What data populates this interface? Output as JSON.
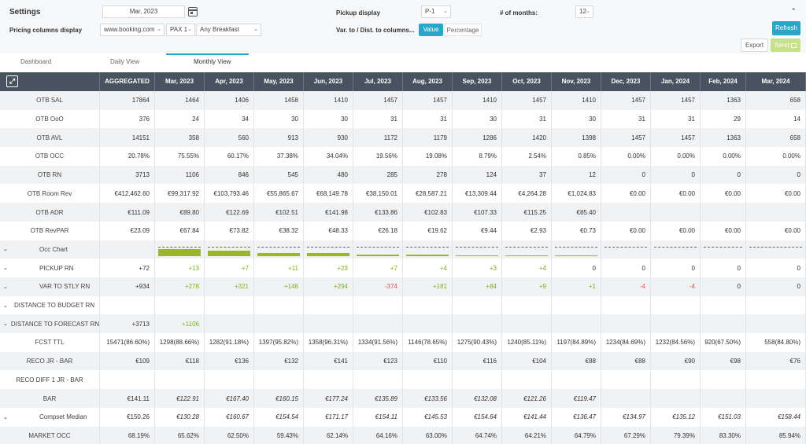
{
  "settings": {
    "title": "Settings",
    "date_value": "Mar, 2023",
    "pricing_label": "Pricing columns display",
    "pricing_source": "www.booking.com",
    "pricing_pax": "PAX 1",
    "pricing_board": "Any Breakfast",
    "pickup_label": "Pickup display",
    "pickup_value": "P-1",
    "months_label": "# of months:",
    "months_value": "12",
    "var_label": "Var. to / Dist. to columns...",
    "value_btn": "Value",
    "percentage_btn": "Percentage",
    "refresh_btn": "Refresh",
    "export_btn": "Export",
    "send_btn": "Send"
  },
  "tabs": [
    "Dashboard",
    "Daily View",
    "Monthly View"
  ],
  "columns": [
    "AGGREGATED",
    "Mar, 2023",
    "Apr, 2023",
    "May, 2023",
    "Jun, 2023",
    "Jul, 2023",
    "Aug, 2023",
    "Sep, 2023",
    "Oct, 2023",
    "Nov, 2023",
    "Dec, 2023",
    "Jan, 2024",
    "Feb, 2024",
    "Mar, 2024"
  ],
  "occ_chart": [
    0.7555,
    0.6017,
    0.3738,
    0.3404,
    0.1956,
    0.1908,
    0.0879,
    0.0254,
    0.0085,
    0,
    0,
    0,
    0
  ],
  "rows": [
    {
      "label": "OTB SAL",
      "values": [
        "17864",
        "1464",
        "1406",
        "1458",
        "1410",
        "1457",
        "1457",
        "1410",
        "1457",
        "1410",
        "1457",
        "1457",
        "1363",
        "658"
      ]
    },
    {
      "label": "OTB OoO",
      "values": [
        "376",
        "24",
        "34",
        "30",
        "30",
        "31",
        "31",
        "30",
        "31",
        "30",
        "31",
        "31",
        "29",
        "14"
      ]
    },
    {
      "label": "OTB AVL",
      "values": [
        "14151",
        "358",
        "560",
        "913",
        "930",
        "1172",
        "1179",
        "1286",
        "1420",
        "1398",
        "1457",
        "1457",
        "1363",
        "658"
      ]
    },
    {
      "label": "OTB OCC",
      "values": [
        "20.78%",
        "75.55%",
        "60.17%",
        "37.38%",
        "34.04%",
        "19.56%",
        "19.08%",
        "8.79%",
        "2.54%",
        "0.85%",
        "0.00%",
        "0.00%",
        "0.00%",
        "0.00%"
      ]
    },
    {
      "label": "OTB RN",
      "values": [
        "3713",
        "1106",
        "846",
        "545",
        "480",
        "285",
        "278",
        "124",
        "37",
        "12",
        "0",
        "0",
        "0",
        "0"
      ]
    },
    {
      "label": "OTB Room Rev",
      "values": [
        "€412,462.60",
        "€99,317.92",
        "€103,793.46",
        "€55,865.67",
        "€68,149.78",
        "€38,150.01",
        "€28,587.21",
        "€13,309.44",
        "€4,264.28",
        "€1,024.83",
        "€0.00",
        "€0.00",
        "€0.00",
        "€0.00"
      ]
    },
    {
      "label": "OTB ADR",
      "values": [
        "€111.09",
        "€89.80",
        "€122.69",
        "€102.51",
        "€141.98",
        "€133.86",
        "€102.83",
        "€107.33",
        "€115.25",
        "€85.40",
        "",
        "",
        "",
        ""
      ]
    },
    {
      "label": "OTB RevPAR",
      "values": [
        "€23.09",
        "€67.84",
        "€73.82",
        "€38.32",
        "€48.33",
        "€26.18",
        "€19.62",
        "€9.44",
        "€2.93",
        "€0.73",
        "€0.00",
        "€0.00",
        "€0.00",
        "€0.00"
      ]
    },
    {
      "label": "Occ Chart",
      "chev": true,
      "chart": true,
      "values": []
    },
    {
      "label": "PICKUP RN",
      "chev": true,
      "values": [
        "+72",
        "+13",
        "+7",
        "+11",
        "+23",
        "+7",
        "+4",
        "+3",
        "+4",
        "0",
        "0",
        "0",
        "0",
        "0"
      ]
    },
    {
      "label": "VAR TO STLY RN",
      "chev": true,
      "values": [
        "+934",
        "+278",
        "+321",
        "+148",
        "+294",
        "-374",
        "+181",
        "+84",
        "+9",
        "+1",
        "-4",
        "-4",
        "0",
        "0"
      ]
    },
    {
      "label": "DISTANCE TO BUDGET RN",
      "chev": true,
      "left": true,
      "values": [
        "",
        "",
        "",
        "",
        "",
        "",
        "",
        "",
        "",
        "",
        "",
        "",
        "",
        ""
      ]
    },
    {
      "label": "DISTANCE TO FORECAST RN",
      "chev": true,
      "left": true,
      "values": [
        "+3713",
        "+1106",
        "",
        "",
        "",
        "",
        "",
        "",
        "",
        "",
        "",
        "",
        "",
        ""
      ]
    },
    {
      "label": "FCST TTL",
      "values": [
        "15471(86.60%)",
        "1298(88.66%)",
        "1282(91.18%)",
        "1397(95.82%)",
        "1358(96.31%)",
        "1334(91.56%)",
        "1146(78.65%)",
        "1275(90.43%)",
        "1240(85.11%)",
        "1197(84.89%)",
        "1234(84.69%)",
        "1232(84.56%)",
        "920(67.50%)",
        "558(84.80%)"
      ]
    },
    {
      "label": "RECO JR - BAR",
      "values": [
        "€109",
        "€118",
        "€136",
        "€132",
        "€141",
        "€123",
        "€110",
        "€116",
        "€104",
        "€88",
        "€88",
        "€90",
        "€98",
        "€76"
      ]
    },
    {
      "label": "RECO DIFF 1 JR - BAR",
      "values": [
        "",
        "",
        "",
        "",
        "",
        "",
        "",
        "",
        "",
        "",
        "",
        "",
        "",
        ""
      ]
    },
    {
      "label": "BAR",
      "italic": true,
      "values": [
        "€141.11",
        "€122.91",
        "€167.40",
        "€160.15",
        "€177.24",
        "€135.89",
        "€133.56",
        "€132.08",
        "€121.26",
        "€119.47",
        "",
        "",
        "",
        ""
      ]
    },
    {
      "label": "Compset Median",
      "chev": true,
      "italic": true,
      "values": [
        "€150.26",
        "€130.28",
        "€160.67",
        "€154.54",
        "€171.17",
        "€154.11",
        "€145.53",
        "€154.64",
        "€141.44",
        "€136.47",
        "€134.97",
        "€135.12",
        "€151.03",
        "€158.44"
      ]
    },
    {
      "label": "MARKET OCC",
      "values": [
        "68.19%",
        "65.62%",
        "62.50%",
        "59.43%",
        "62.14%",
        "64.16%",
        "63.00%",
        "64.74%",
        "64.21%",
        "64.79%",
        "67.29%",
        "79.39%",
        "83.30%",
        "85.94%"
      ]
    }
  ]
}
